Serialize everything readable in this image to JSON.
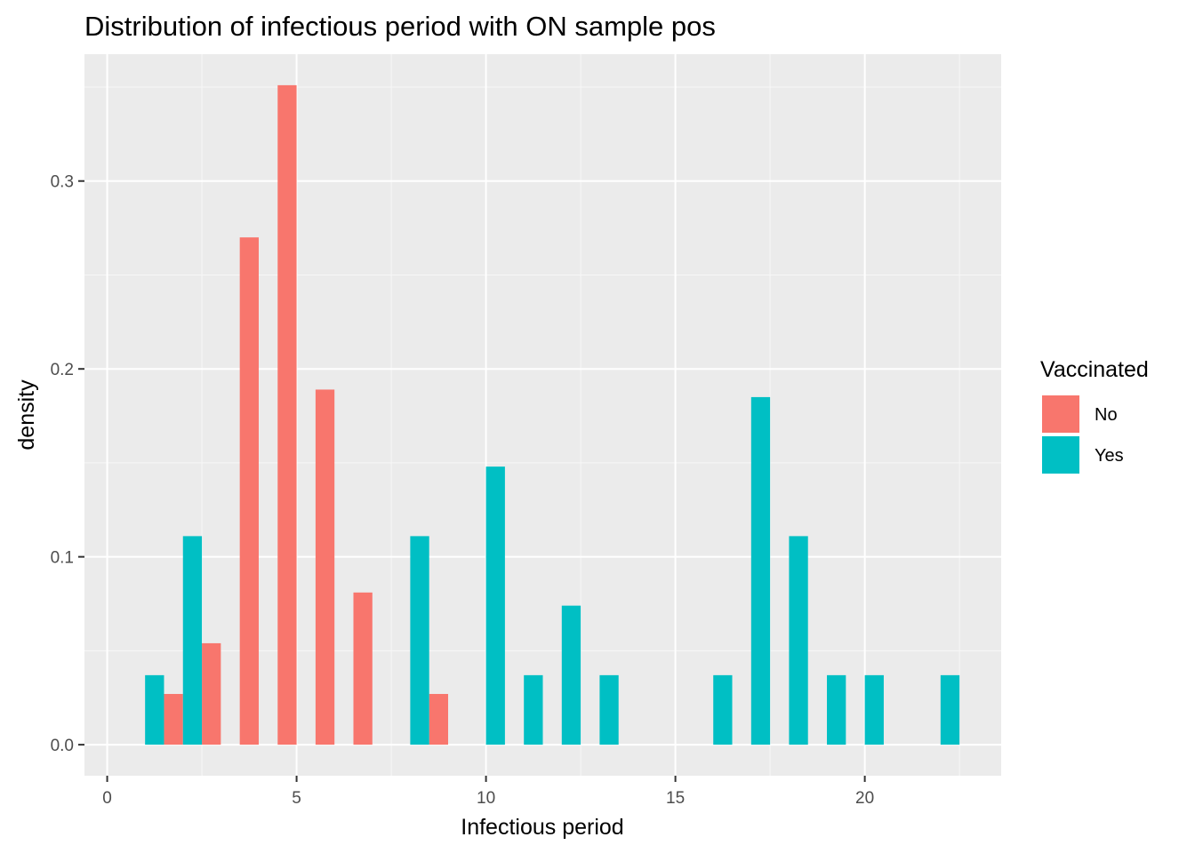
{
  "chart_data": {
    "type": "bar",
    "title": "Distribution of infectious period with ON sample pos",
    "xlabel": "Infectious period",
    "ylabel": "density",
    "xlim": [
      -0.6,
      23.6
    ],
    "ylim": [
      -0.0165,
      0.3675
    ],
    "x_ticks": [
      0,
      5,
      10,
      15,
      20
    ],
    "x_tick_labels": [
      "0",
      "5",
      "10",
      "15",
      "20"
    ],
    "y_ticks": [
      0.0,
      0.1,
      0.2,
      0.3
    ],
    "y_tick_labels": [
      "0.0",
      "0.1",
      "0.2",
      "0.3"
    ],
    "bin_width": 1,
    "dodge": true,
    "grid": true,
    "legend": {
      "title": "Vaccinated",
      "position": "right",
      "entries": [
        {
          "name": "No",
          "color": "#F8766D"
        },
        {
          "name": "Yes",
          "color": "#00BFC4"
        }
      ]
    },
    "series": [
      {
        "name": "No",
        "color": "#F8766D",
        "points": [
          {
            "x": 2,
            "y": 0.027
          },
          {
            "x": 3,
            "y": 0.054
          },
          {
            "x": 4,
            "y": 0.27
          },
          {
            "x": 5,
            "y": 0.351
          },
          {
            "x": 6,
            "y": 0.189
          },
          {
            "x": 7,
            "y": 0.081
          },
          {
            "x": 9,
            "y": 0.027
          }
        ]
      },
      {
        "name": "Yes",
        "color": "#00BFC4",
        "points": [
          {
            "x": 1,
            "y": 0.037
          },
          {
            "x": 2,
            "y": 0.111
          },
          {
            "x": 8,
            "y": 0.111
          },
          {
            "x": 10,
            "y": 0.148
          },
          {
            "x": 11,
            "y": 0.037
          },
          {
            "x": 12,
            "y": 0.074
          },
          {
            "x": 13,
            "y": 0.037
          },
          {
            "x": 16,
            "y": 0.037
          },
          {
            "x": 17,
            "y": 0.185
          },
          {
            "x": 18,
            "y": 0.111
          },
          {
            "x": 19,
            "y": 0.037
          },
          {
            "x": 20,
            "y": 0.037
          },
          {
            "x": 22,
            "y": 0.037
          }
        ]
      }
    ],
    "colors": {
      "panel_background": "#EBEBEB",
      "grid_major": "#FFFFFF",
      "grid_minor": "#F7F7F7",
      "tick_text": "#4D4D4D",
      "tick_mark": "#333333"
    }
  }
}
